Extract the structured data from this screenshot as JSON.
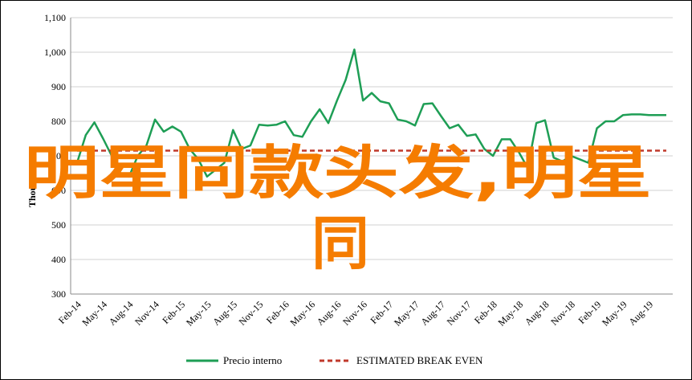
{
  "chart_data": {
    "type": "line",
    "title": "",
    "xlabel": "",
    "ylabel": "Thousands",
    "ylim": [
      300,
      1100
    ],
    "yticks": [
      "300",
      "400",
      "500",
      "600",
      "700",
      "800",
      "900",
      "1,000",
      "1,100"
    ],
    "ytick_values": [
      300,
      400,
      500,
      600,
      700,
      800,
      900,
      1000,
      1100
    ],
    "grid": true,
    "legend_position": "bottom",
    "x_tick_labels": [
      "Feb-14",
      "May-14",
      "Aug-14",
      "Nov-14",
      "Feb-15",
      "May-15",
      "Aug-15",
      "Nov-15",
      "Feb-16",
      "May-16",
      "Aug-16",
      "Nov-16",
      "Feb-17",
      "May-17",
      "Aug-17",
      "Nov-17",
      "Feb-18",
      "May-18",
      "Aug-18",
      "Nov-18",
      "Feb-19",
      "May-19",
      "Aug-19"
    ],
    "x_months": [
      "Feb-14",
      "Mar-14",
      "Apr-14",
      "May-14",
      "Jun-14",
      "Jul-14",
      "Aug-14",
      "Sep-14",
      "Oct-14",
      "Nov-14",
      "Dec-14",
      "Jan-15",
      "Feb-15",
      "Mar-15",
      "Apr-15",
      "May-15",
      "Jun-15",
      "Jul-15",
      "Aug-15",
      "Sep-15",
      "Oct-15",
      "Nov-15",
      "Dec-15",
      "Jan-16",
      "Feb-16",
      "Mar-16",
      "Apr-16",
      "May-16",
      "Jun-16",
      "Jul-16",
      "Aug-16",
      "Sep-16",
      "Oct-16",
      "Nov-16",
      "Dec-16",
      "Jan-17",
      "Feb-17",
      "Mar-17",
      "Apr-17",
      "May-17",
      "Jun-17",
      "Jul-17",
      "Aug-17",
      "Sep-17",
      "Oct-17",
      "Nov-17",
      "Dec-17",
      "Jan-18",
      "Feb-18",
      "Mar-18",
      "Apr-18",
      "May-18",
      "Jun-18",
      "Jul-18",
      "Aug-18",
      "Sep-18",
      "Oct-18",
      "Nov-18",
      "Dec-18",
      "Jan-19",
      "Feb-19",
      "Mar-19",
      "Apr-19",
      "May-19",
      "Jun-19",
      "Jul-19",
      "Aug-19",
      "Sep-19",
      "Oct-19"
    ],
    "series": [
      {
        "name": "Precio interno",
        "color": "#1E9E55",
        "style": "solid",
        "values": [
          680,
          760,
          797,
          750,
          700,
          650,
          640,
          700,
          730,
          805,
          770,
          785,
          770,
          720,
          690,
          640,
          660,
          680,
          775,
          720,
          730,
          790,
          788,
          790,
          800,
          760,
          755,
          800,
          835,
          795,
          860,
          920,
          1008,
          860,
          882,
          858,
          852,
          805,
          800,
          788,
          850,
          852,
          815,
          780,
          790,
          758,
          762,
          720,
          700,
          748,
          748,
          710,
          665,
          795,
          803,
          695,
          684,
          700,
          690,
          680,
          780,
          800,
          800,
          818,
          820,
          820,
          818,
          818,
          818
        ]
      },
      {
        "name": "ESTIMATED BREAK EVEN",
        "color": "#C0392B",
        "style": "dashed",
        "values": [
          715,
          715,
          715,
          715,
          715,
          715,
          715,
          715,
          715,
          715,
          715,
          715,
          715,
          715,
          715,
          715,
          715,
          715,
          715,
          715,
          715,
          715,
          715,
          715,
          715,
          715,
          715,
          715,
          715,
          715,
          715,
          715,
          715,
          715,
          715,
          715,
          715,
          715,
          715,
          715,
          715,
          715,
          715,
          715,
          715,
          715,
          715,
          715,
          715,
          715,
          715,
          715,
          715,
          715,
          715,
          715,
          715,
          715,
          715,
          715,
          715,
          715,
          715,
          715,
          715,
          715,
          715,
          715,
          715
        ]
      }
    ]
  },
  "overlay": {
    "line1": "明星同款头发,明星",
    "line2": "同",
    "color": "#F57C00"
  }
}
